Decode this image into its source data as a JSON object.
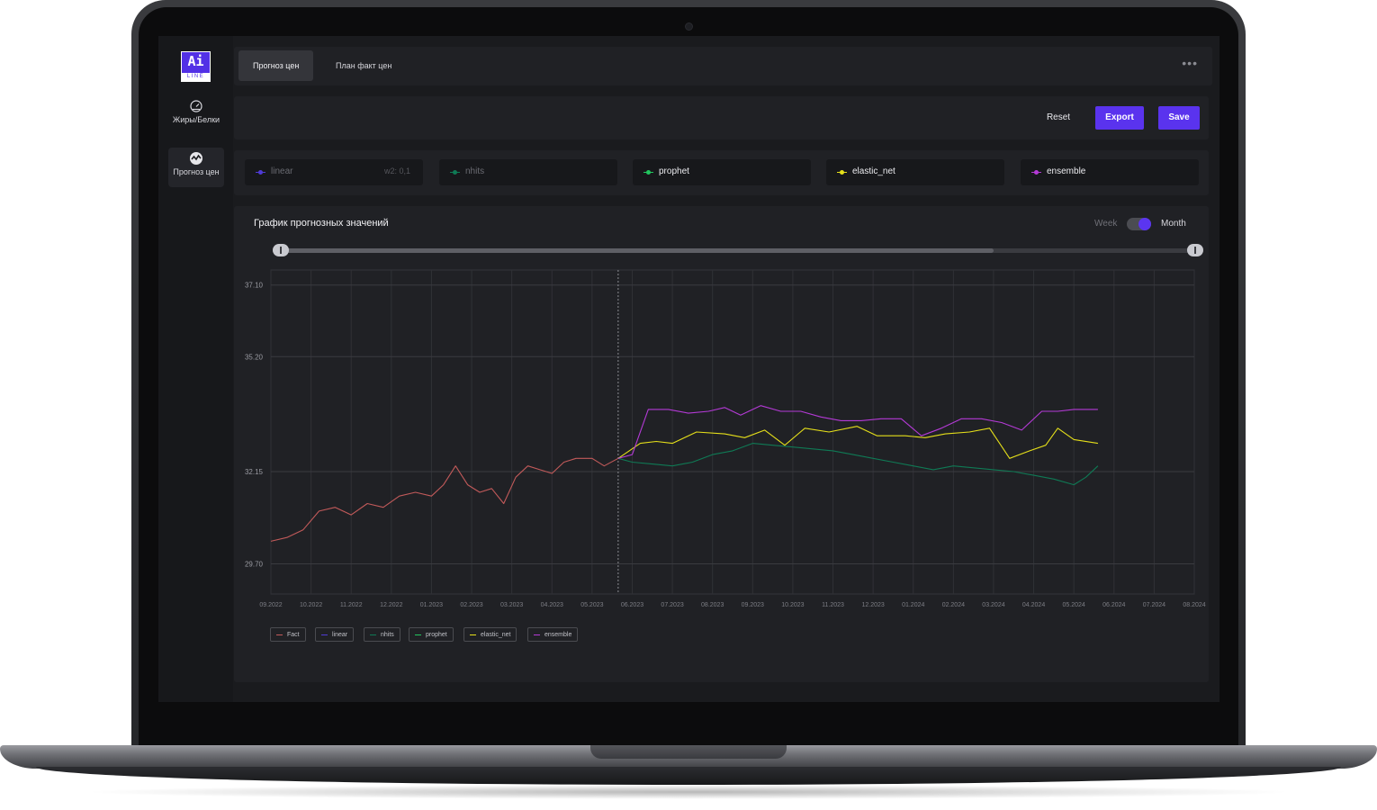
{
  "app": {
    "logo": {
      "main": "Ai",
      "sub": "LINE"
    },
    "sidebar": {
      "items": [
        {
          "label": "Жиры/Белки",
          "icon": "gauge-icon"
        },
        {
          "label": "Прогноз цен",
          "icon": "forecast-icon",
          "active": true
        }
      ]
    },
    "tabs": [
      {
        "label": "Прогноз цен",
        "active": true
      },
      {
        "label": "План факт цен",
        "active": false
      }
    ],
    "more_label": "•••",
    "actions": {
      "reset": "Reset",
      "export": "Export",
      "save": "Save"
    },
    "models": [
      {
        "name": "linear",
        "color": "#4f3bd6",
        "extra": "w2: 0,1",
        "enabled": false
      },
      {
        "name": "nhits",
        "color": "#0f7a55",
        "extra": "",
        "enabled": false
      },
      {
        "name": "prophet",
        "color": "#22c55e",
        "extra": "",
        "enabled": true
      },
      {
        "name": "elastic_net",
        "color": "#e6e01a",
        "extra": "",
        "enabled": true
      },
      {
        "name": "ensemble",
        "color": "#b43ad6",
        "extra": "",
        "enabled": true
      }
    ],
    "chart": {
      "title": "График прогнозных значений",
      "toggle": {
        "left": "Week",
        "right": "Month",
        "selected": "Month"
      },
      "range": {
        "start": 0.0,
        "fill_end": 0.78,
        "end": 1.0
      }
    }
  },
  "chart_data": {
    "type": "line",
    "title": "График прогнозных значений",
    "x": [
      "09.2022",
      "10.2022",
      "11.2022",
      "12.2022",
      "01.2023",
      "02.2023",
      "03.2023",
      "04.2023",
      "05.2023",
      "06.2023",
      "07.2023",
      "08.2023",
      "09.2023",
      "10.2023",
      "11.2023",
      "12.2023",
      "01.2024",
      "02.2024",
      "03.2024",
      "04.2024",
      "05.2024",
      "06.2024",
      "07.2024",
      "08.2024"
    ],
    "y_ticks": [
      "37.10",
      "35.20",
      "32.15",
      "29.70"
    ],
    "forecast_start": "06.2023",
    "series": [
      {
        "name": "Fact",
        "color": "#c25a5a",
        "points": [
          [
            0,
            30.3
          ],
          [
            0.4,
            30.4
          ],
          [
            0.8,
            30.6
          ],
          [
            1.2,
            31.1
          ],
          [
            1.6,
            31.2
          ],
          [
            2.0,
            31.0
          ],
          [
            2.4,
            31.3
          ],
          [
            2.8,
            31.2
          ],
          [
            3.2,
            31.5
          ],
          [
            3.6,
            31.6
          ],
          [
            4.0,
            31.5
          ],
          [
            4.3,
            31.8
          ],
          [
            4.6,
            32.3
          ],
          [
            4.9,
            31.8
          ],
          [
            5.2,
            31.6
          ],
          [
            5.5,
            31.7
          ],
          [
            5.8,
            31.3
          ],
          [
            6.1,
            32.0
          ],
          [
            6.4,
            32.3
          ],
          [
            6.7,
            32.2
          ],
          [
            7.0,
            32.1
          ],
          [
            7.3,
            32.4
          ],
          [
            7.6,
            32.5
          ],
          [
            8.0,
            32.5
          ],
          [
            8.3,
            32.3
          ],
          [
            8.65,
            32.5
          ]
        ]
      },
      {
        "name": "linear",
        "color": "#4f3bd6",
        "points": []
      },
      {
        "name": "nhits",
        "color": "#0f7a55",
        "points": [
          [
            8.65,
            32.5
          ],
          [
            9.0,
            32.4
          ],
          [
            9.5,
            32.35
          ],
          [
            10.0,
            32.3
          ],
          [
            10.5,
            32.4
          ],
          [
            11.0,
            32.6
          ],
          [
            11.5,
            32.7
          ],
          [
            12.0,
            32.9
          ],
          [
            12.5,
            32.85
          ],
          [
            13.0,
            32.8
          ],
          [
            13.5,
            32.75
          ],
          [
            14.0,
            32.7
          ],
          [
            14.5,
            32.6
          ],
          [
            15.0,
            32.5
          ],
          [
            15.5,
            32.4
          ],
          [
            16.0,
            32.3
          ],
          [
            16.5,
            32.2
          ],
          [
            17.0,
            32.3
          ],
          [
            17.5,
            32.25
          ],
          [
            18.0,
            32.2
          ],
          [
            18.5,
            32.15
          ],
          [
            19.0,
            32.05
          ],
          [
            19.5,
            31.95
          ],
          [
            20.0,
            31.8
          ],
          [
            20.3,
            32.0
          ],
          [
            20.6,
            32.3
          ]
        ]
      },
      {
        "name": "prophet",
        "color": "#22c55e",
        "points": []
      },
      {
        "name": "elastic_net",
        "color": "#e6e01a",
        "points": [
          [
            8.65,
            32.5
          ],
          [
            9.2,
            32.9
          ],
          [
            9.6,
            32.95
          ],
          [
            10.0,
            32.9
          ],
          [
            10.6,
            33.2
          ],
          [
            11.3,
            33.15
          ],
          [
            11.8,
            33.05
          ],
          [
            12.3,
            33.25
          ],
          [
            12.8,
            32.85
          ],
          [
            13.3,
            33.3
          ],
          [
            13.9,
            33.2
          ],
          [
            14.6,
            33.35
          ],
          [
            15.1,
            33.1
          ],
          [
            15.8,
            33.1
          ],
          [
            16.3,
            33.05
          ],
          [
            16.8,
            33.15
          ],
          [
            17.4,
            33.2
          ],
          [
            17.9,
            33.3
          ],
          [
            18.4,
            32.5
          ],
          [
            18.9,
            32.7
          ],
          [
            19.3,
            32.85
          ],
          [
            19.6,
            33.3
          ],
          [
            20.0,
            33.0
          ],
          [
            20.6,
            32.9
          ]
        ]
      },
      {
        "name": "ensemble",
        "color": "#b43ad6",
        "points": [
          [
            8.65,
            32.5
          ],
          [
            9.0,
            32.6
          ],
          [
            9.4,
            33.8
          ],
          [
            9.9,
            33.8
          ],
          [
            10.4,
            33.7
          ],
          [
            10.9,
            33.75
          ],
          [
            11.3,
            33.85
          ],
          [
            11.7,
            33.65
          ],
          [
            12.2,
            33.9
          ],
          [
            12.7,
            33.75
          ],
          [
            13.2,
            33.75
          ],
          [
            13.7,
            33.6
          ],
          [
            14.2,
            33.5
          ],
          [
            14.7,
            33.5
          ],
          [
            15.2,
            33.55
          ],
          [
            15.7,
            33.55
          ],
          [
            16.2,
            33.1
          ],
          [
            16.7,
            33.3
          ],
          [
            17.2,
            33.55
          ],
          [
            17.7,
            33.55
          ],
          [
            18.2,
            33.45
          ],
          [
            18.7,
            33.25
          ],
          [
            19.2,
            33.75
          ],
          [
            19.6,
            33.75
          ],
          [
            20.0,
            33.8
          ],
          [
            20.6,
            33.8
          ]
        ]
      }
    ],
    "ylim": [
      28.9,
      37.5
    ],
    "grid": true,
    "legend": [
      "Fact",
      "linear",
      "nhits",
      "prophet",
      "elastic_net",
      "ensemble"
    ],
    "legend_position": "bottom-left"
  }
}
